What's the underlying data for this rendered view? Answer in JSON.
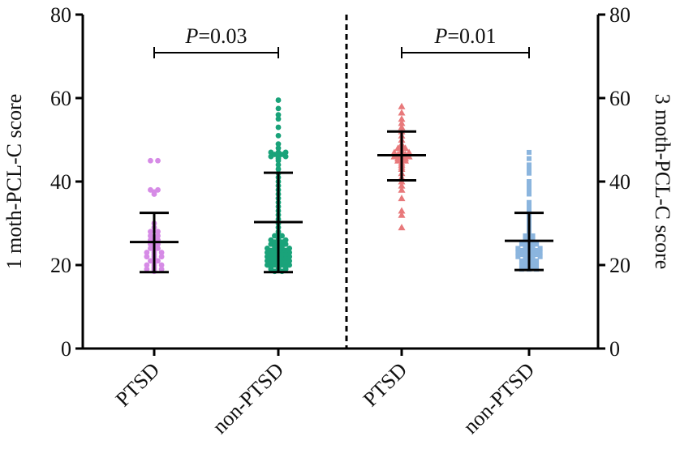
{
  "chart_data": {
    "type": "scatter",
    "subtype": "dot-plot-with-mean-sd",
    "left_axis": {
      "label": "1 moth-PCL-C score",
      "ylim": [
        0,
        80
      ],
      "ticks": [
        0,
        20,
        40,
        60,
        80
      ]
    },
    "right_axis": {
      "label": "3 moth-PCL-C score",
      "ylim": [
        0,
        80
      ],
      "ticks": [
        0,
        20,
        40,
        60,
        80
      ]
    },
    "categories": [
      "PTSD",
      "non-PTSD",
      "PTSD",
      "non-PTSD"
    ],
    "groups": [
      {
        "name": "PTSD",
        "timepoint": "1 month",
        "axis": "left",
        "color": "#d68be6",
        "marker": "circle",
        "mean": 25.5,
        "sd_low": 18.3,
        "sd_high": 32.5,
        "values": [
          45,
          45,
          38,
          38,
          37.5,
          37,
          30,
          29,
          28,
          28,
          27,
          27,
          26.5,
          26,
          26,
          25.5,
          25,
          25,
          24.5,
          24,
          24,
          23.5,
          23,
          23,
          23,
          22.5,
          22,
          22,
          22,
          21.5,
          21,
          21,
          20.5,
          20,
          20,
          20,
          19.5,
          19,
          19,
          19,
          18.5
        ]
      },
      {
        "name": "non-PTSD",
        "timepoint": "1 month",
        "axis": "left",
        "color": "#1aa37a",
        "marker": "circle",
        "mean": 30.3,
        "sd_low": 18.3,
        "sd_high": 42.1,
        "values": [
          59.5,
          57.5,
          56,
          55,
          53,
          51,
          49,
          48,
          47,
          47,
          47,
          46.5,
          46.5,
          46,
          46,
          46,
          45.5,
          45,
          44,
          43,
          42,
          41,
          40,
          39,
          38,
          37,
          36,
          35,
          34,
          33,
          32,
          31,
          30,
          29,
          28,
          27.5,
          27,
          27,
          26.5,
          26,
          26,
          26,
          25.5,
          25.5,
          25,
          25,
          25,
          24.5,
          24.5,
          24,
          24,
          24,
          24,
          23.5,
          23.5,
          23.5,
          23,
          23,
          23,
          23,
          22.5,
          22.5,
          22.5,
          22,
          22,
          22,
          22,
          21.5,
          21.5,
          21.5,
          21,
          21,
          21,
          21,
          20.5,
          20.5,
          20.5,
          20,
          20,
          20,
          20,
          19.5,
          19.5,
          19.5,
          19,
          19,
          19,
          18.5,
          18.5
        ]
      },
      {
        "name": "PTSD",
        "timepoint": "3 months",
        "axis": "right",
        "color": "#e8797b",
        "marker": "triangle",
        "mean": 46.3,
        "sd_low": 40.3,
        "sd_high": 52.0,
        "values": [
          58,
          56.5,
          55,
          54,
          53,
          52,
          51,
          50,
          49,
          48.5,
          48,
          48,
          47.5,
          47,
          47,
          47,
          46.5,
          46.5,
          46,
          46,
          46,
          45.5,
          45.5,
          45,
          45,
          44.5,
          44,
          43.5,
          43,
          42,
          41,
          40,
          39,
          38,
          36,
          33,
          32,
          29
        ]
      },
      {
        "name": "non-PTSD",
        "timepoint": "3 months",
        "axis": "right",
        "color": "#8bb5de",
        "marker": "square",
        "mean": 25.8,
        "sd_low": 18.8,
        "sd_high": 32.5,
        "values": [
          47,
          45.5,
          44,
          43,
          42,
          40,
          39,
          38,
          37,
          35,
          34,
          33,
          32,
          31,
          30,
          29,
          28.5,
          28,
          27.5,
          27,
          27,
          26.5,
          26,
          26,
          25.5,
          25.5,
          25,
          25,
          25,
          24.5,
          24.5,
          24,
          24,
          24,
          24,
          23.5,
          23.5,
          23.5,
          23,
          23,
          23,
          23,
          22.5,
          22.5,
          22.5,
          22,
          22,
          22,
          22,
          21.5,
          21.5,
          21,
          21,
          21,
          20.5,
          20.5,
          20,
          20,
          20,
          19.5,
          19.5,
          19,
          19,
          19
        ]
      }
    ],
    "annotations": [
      {
        "between": [
          0,
          1
        ],
        "italic": "P",
        "text": "=0.03"
      },
      {
        "between": [
          2,
          3
        ],
        "italic": "P",
        "text": "=0.01"
      }
    ],
    "divider": "dashed vertical line between time points",
    "grid": false
  }
}
